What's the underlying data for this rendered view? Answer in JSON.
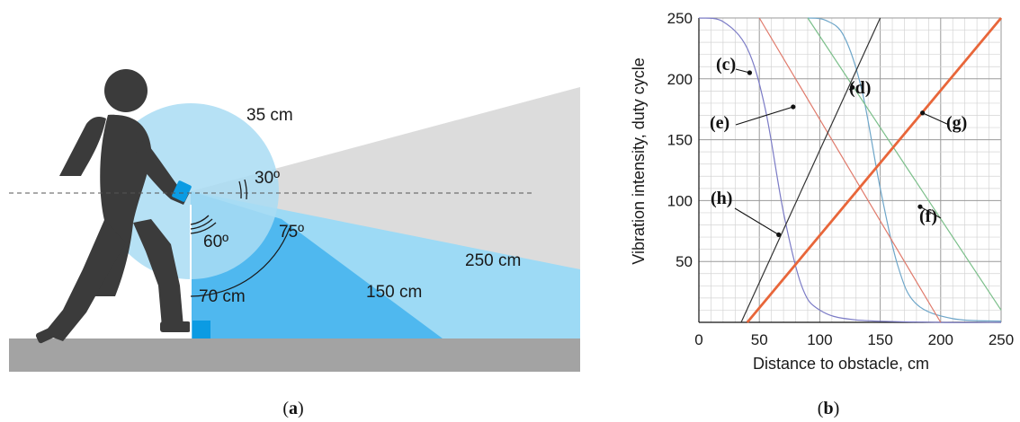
{
  "panel_a": {
    "caption_open": "(",
    "caption_letter": "a",
    "caption_close": ")",
    "radius_label": "35 cm",
    "angle_30": "30º",
    "angle_60": "60º",
    "angle_75": "75º",
    "height_label": "70 cm",
    "range_150": "150 cm",
    "range_250": "250 cm",
    "colors": {
      "circle": "#a9dcf3",
      "cone_gray": "#dcdcdc",
      "cone_light": "#9ddaf5",
      "cone_mid": "#4fb8ef",
      "ground": "#a3a3a3",
      "person": "#3b3b3b",
      "device": "#0b9be3"
    }
  },
  "panel_b": {
    "caption_open": "(",
    "caption_letter": "b",
    "caption_close": ")"
  },
  "chart_data": {
    "type": "line",
    "xlabel": "Distance to obstacle, cm",
    "ylabel": "Vibration intensity, duty cycle",
    "xlim": [
      0,
      250
    ],
    "ylim": [
      0,
      250
    ],
    "x_ticks": [
      0,
      50,
      100,
      150,
      200,
      250
    ],
    "y_ticks": [
      50,
      100,
      150,
      200,
      250
    ],
    "grid": true,
    "series": [
      {
        "name": "(c)",
        "color": "#7b7bc6",
        "width": 1.2,
        "shape": "sigmoid",
        "points": [
          [
            0,
            250
          ],
          [
            20,
            247
          ],
          [
            40,
            225
          ],
          [
            55,
            175
          ],
          [
            70,
            90
          ],
          [
            85,
            30
          ],
          [
            100,
            10
          ],
          [
            130,
            2
          ],
          [
            200,
            0
          ],
          [
            250,
            0
          ]
        ]
      },
      {
        "name": "(d)",
        "color": "#6ea6c9",
        "width": 1.2,
        "shape": "sigmoid",
        "points": [
          [
            90,
            250
          ],
          [
            105,
            248
          ],
          [
            120,
            235
          ],
          [
            135,
            190
          ],
          [
            150,
            110
          ],
          [
            165,
            45
          ],
          [
            180,
            15
          ],
          [
            210,
            3
          ],
          [
            250,
            1
          ]
        ]
      },
      {
        "name": "(e)",
        "color": "#e07a6b",
        "width": 1.2,
        "shape": "linear",
        "points": [
          [
            50,
            250
          ],
          [
            200,
            0
          ]
        ]
      },
      {
        "name": "(f)",
        "color": "#7bbf8a",
        "width": 1.2,
        "shape": "linear",
        "points": [
          [
            90,
            250
          ],
          [
            250,
            10
          ]
        ]
      },
      {
        "name": "(g)",
        "color": "#e8663a",
        "width": 2.8,
        "shape": "linear",
        "points": [
          [
            40,
            0
          ],
          [
            250,
            250
          ]
        ]
      },
      {
        "name": "(h)",
        "color": "#333333",
        "width": 1.2,
        "shape": "linear",
        "points": [
          [
            35,
            0
          ],
          [
            150,
            250
          ]
        ]
      }
    ],
    "annotations": [
      {
        "label": "(c)",
        "point": [
          42,
          205
        ]
      },
      {
        "label": "(d)",
        "point": [
          127,
          193
        ]
      },
      {
        "label": "(e)",
        "point": [
          78,
          177
        ]
      },
      {
        "label": "(f)",
        "point": [
          183,
          95
        ]
      },
      {
        "label": "(g)",
        "point": [
          185,
          172
        ]
      },
      {
        "label": "(h)",
        "point": [
          66,
          72
        ]
      }
    ]
  }
}
